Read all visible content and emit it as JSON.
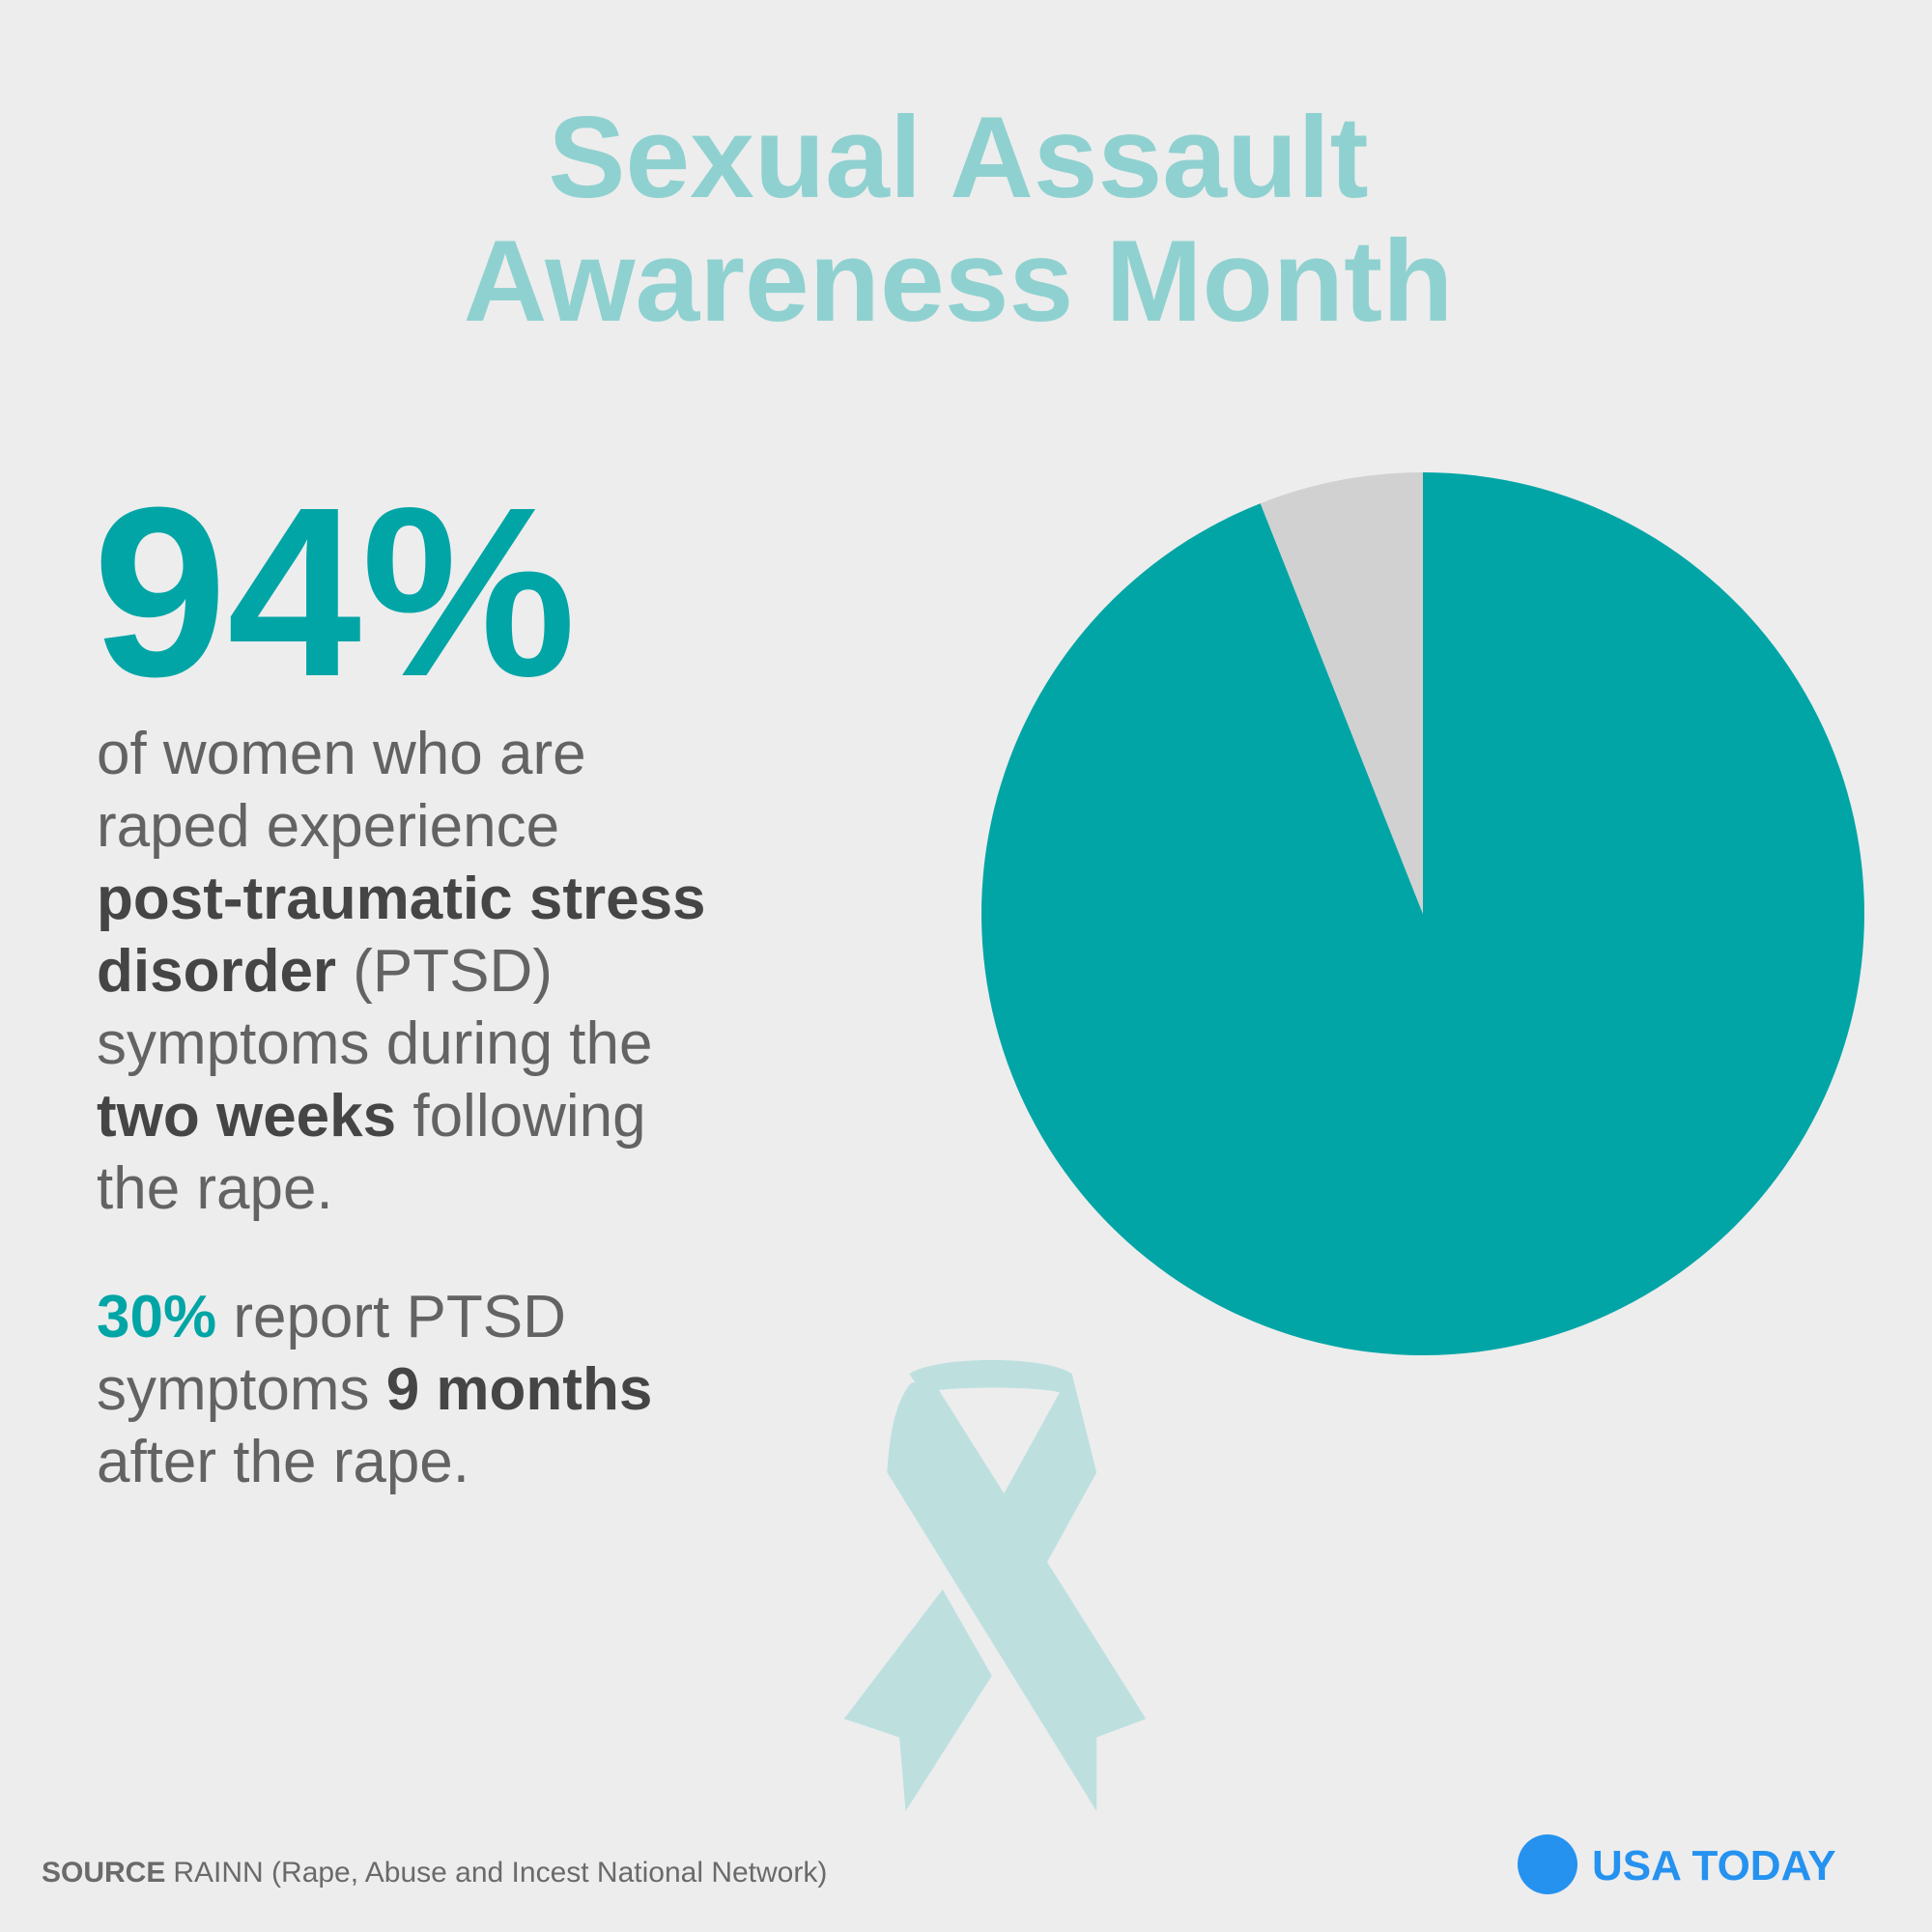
{
  "title_lines": [
    "Sexual Assault",
    "Awareness Month"
  ],
  "headline": "94%",
  "paragraphs": [
    [
      [
        {
          "text": "of women who are",
          "style": "regular"
        }
      ],
      [
        {
          "text": "raped experience",
          "style": "regular"
        }
      ],
      [
        {
          "text": "post-traumatic stress",
          "style": "bold"
        }
      ],
      [
        {
          "text": "disorder",
          "style": "bold"
        },
        {
          "text": " (PTSD)",
          "style": "regular"
        }
      ],
      [
        {
          "text": "symptoms during the",
          "style": "regular"
        }
      ],
      [
        {
          "text": "two weeks",
          "style": "bold"
        },
        {
          "text": " following",
          "style": "regular"
        }
      ],
      [
        {
          "text": "the rape.",
          "style": "regular"
        }
      ]
    ],
    [
      [
        {
          "text": "30%",
          "style": "accent"
        },
        {
          "text": " report PTSD",
          "style": "regular"
        }
      ],
      [
        {
          "text": "symptoms ",
          "style": "regular"
        },
        {
          "text": "9 months",
          "style": "bold"
        }
      ],
      [
        {
          "text": "after the rape.",
          "style": "regular"
        }
      ]
    ]
  ],
  "source": {
    "label": "SOURCE",
    "text": "RAINN (Rape, Abuse and Incest National Network)"
  },
  "logo": "USA TODAY",
  "chart_data": {
    "type": "pie",
    "values": [
      94,
      6
    ],
    "colors": [
      "#02a5a6",
      "#d1d1d1"
    ]
  }
}
